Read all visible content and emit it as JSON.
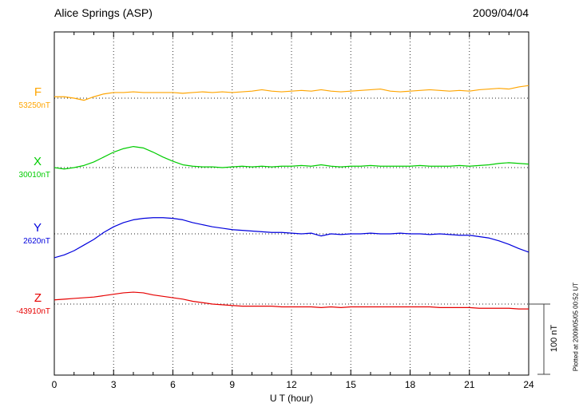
{
  "header": {
    "station": "Alice Springs (ASP)",
    "date": "2009/04/04"
  },
  "footer": {
    "plotted_note": "Plotted at 2009/05/05 00:52 UT"
  },
  "chart_data": {
    "type": "line",
    "title": "Alice Springs (ASP)",
    "subtitle": "2009/04/04",
    "xlabel": "U T (hour)",
    "ylabel": "",
    "xlim": [
      0,
      24
    ],
    "x_ticks": [
      0,
      3,
      6,
      9,
      12,
      15,
      18,
      21,
      24
    ],
    "grid_hours": [
      3,
      6,
      9,
      12,
      15,
      18,
      21
    ],
    "grid": "dotted-vertical-and-baselines",
    "legend_position": "left-of-each-trace",
    "sample_step_hours": 0.5,
    "scale_bar": {
      "label": "100 nT",
      "value_nT": 100
    },
    "series": [
      {
        "name": "F",
        "baseline_label": "53250nT",
        "baseline_value_nT": 53250,
        "color": "#FFA500",
        "offsets_nT": [
          2,
          2,
          0,
          -3,
          2,
          6,
          8,
          8,
          9,
          8,
          8,
          8,
          8,
          7,
          8,
          9,
          8,
          9,
          8,
          9,
          10,
          12,
          10,
          9,
          10,
          11,
          10,
          12,
          10,
          9,
          10,
          11,
          12,
          13,
          10,
          9,
          10,
          11,
          12,
          11,
          10,
          11,
          10,
          12,
          13,
          14,
          13,
          16,
          18
        ]
      },
      {
        "name": "X",
        "baseline_label": "30010nT",
        "baseline_value_nT": 30010,
        "color": "#00CC00",
        "offsets_nT": [
          0,
          -2,
          0,
          3,
          8,
          15,
          22,
          27,
          30,
          28,
          22,
          15,
          9,
          4,
          2,
          1,
          1,
          0,
          1,
          2,
          1,
          2,
          1,
          2,
          2,
          3,
          2,
          4,
          2,
          1,
          2,
          2,
          3,
          2,
          2,
          2,
          2,
          3,
          2,
          2,
          2,
          3,
          2,
          3,
          4,
          6,
          7,
          6,
          5
        ]
      },
      {
        "name": "Y",
        "baseline_label": "2620nT",
        "baseline_value_nT": 2620,
        "color": "#0000DD",
        "offsets_nT": [
          -34,
          -30,
          -24,
          -16,
          -8,
          2,
          10,
          16,
          20,
          22,
          23,
          23,
          22,
          20,
          16,
          13,
          10,
          8,
          6,
          5,
          4,
          3,
          2,
          2,
          1,
          0,
          1,
          -3,
          0,
          -1,
          0,
          0,
          1,
          0,
          0,
          1,
          0,
          0,
          -1,
          0,
          -1,
          -2,
          -2,
          -4,
          -6,
          -10,
          -15,
          -21,
          -26
        ]
      },
      {
        "name": "Z",
        "baseline_label": "-43910nT",
        "baseline_value_nT": -43910,
        "color": "#E60000",
        "offsets_nT": [
          6,
          7,
          8,
          9,
          10,
          12,
          14,
          16,
          17,
          16,
          13,
          11,
          9,
          7,
          4,
          2,
          0,
          -1,
          -2,
          -3,
          -3,
          -3,
          -3,
          -4,
          -4,
          -4,
          -4,
          -5,
          -4,
          -5,
          -4,
          -4,
          -4,
          -4,
          -4,
          -4,
          -4,
          -4,
          -4,
          -5,
          -5,
          -5,
          -5,
          -6,
          -6,
          -6,
          -6,
          -7,
          -7
        ]
      }
    ]
  }
}
